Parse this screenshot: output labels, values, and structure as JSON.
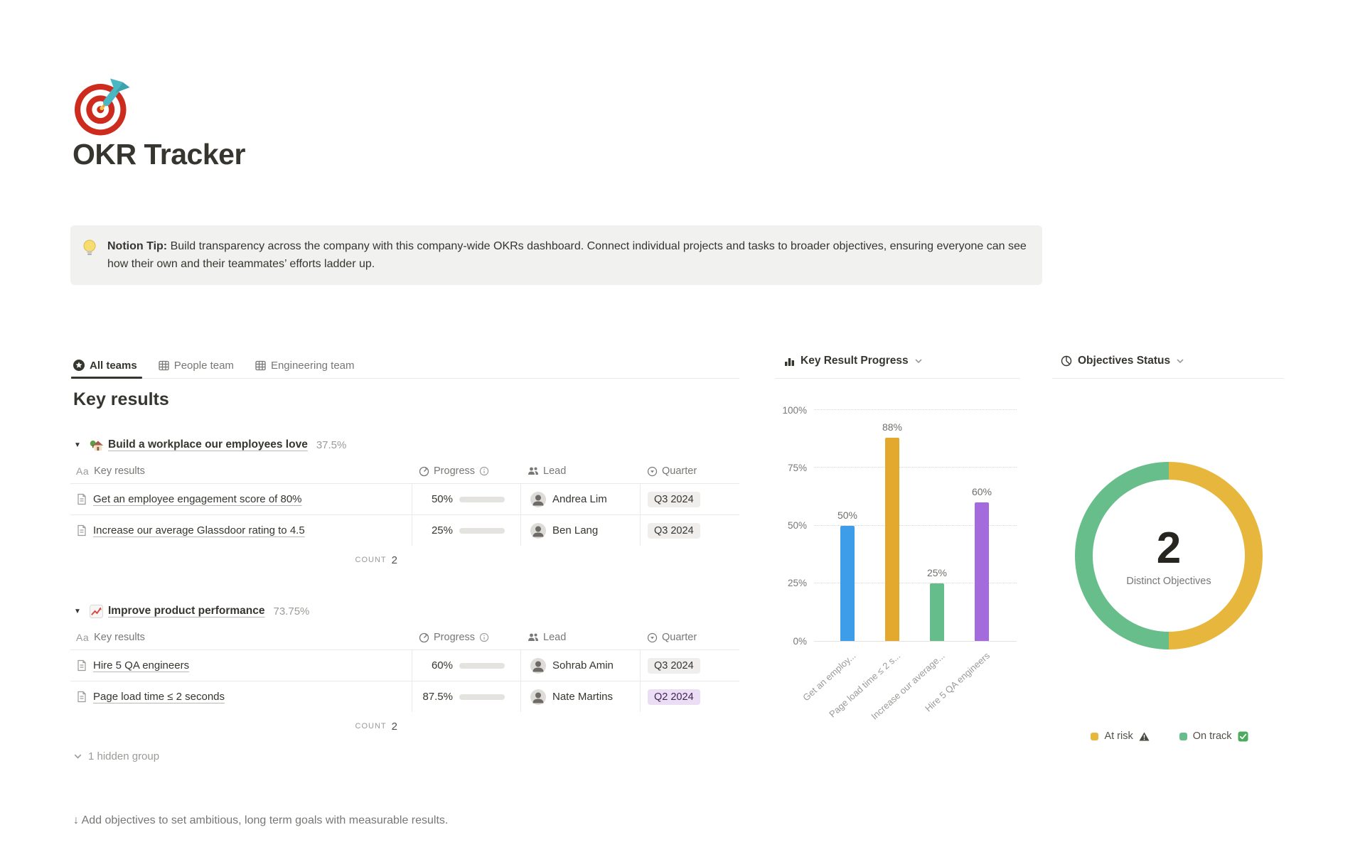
{
  "page": {
    "icon_name": "target-dart-icon",
    "title": "OKR Tracker",
    "tip": {
      "icon_name": "lightbulb-icon",
      "label": "Notion Tip:",
      "text": " Build transparency across the company with this company-wide OKRs dashboard. Connect individual projects and tasks to broader objectives, ensuring everyone can see how their own and their teammates’ efforts ladder up."
    }
  },
  "tabs": [
    {
      "label": "All teams",
      "icon": "star-badge-icon",
      "active": true
    },
    {
      "label": "People team",
      "icon": "table-view-icon",
      "active": false
    },
    {
      "label": "Engineering team",
      "icon": "table-view-icon",
      "active": false
    }
  ],
  "key_results": {
    "heading": "Key results",
    "columns": {
      "name": "Key results",
      "progress": "Progress",
      "lead": "Lead",
      "quarter": "Quarter"
    },
    "groups": [
      {
        "emoji_name": "house-garden-icon",
        "title": "Build a workplace our employees love",
        "percent": "37.5%",
        "rows": [
          {
            "name": "Get an employee engagement score of 80%",
            "progress_label": "50%",
            "progress_value": 50,
            "lead": "Andrea Lim",
            "quarter": "Q3 2024",
            "quarter_color": "gray"
          },
          {
            "name": "Increase our average Glassdoor rating to 4.5",
            "progress_label": "25%",
            "progress_value": 25,
            "lead": "Ben Lang",
            "quarter": "Q3 2024",
            "quarter_color": "gray"
          }
        ],
        "count_label": "COUNT",
        "count": "2"
      },
      {
        "emoji_name": "chart-increasing-icon",
        "title": "Improve product performance",
        "percent": "73.75%",
        "rows": [
          {
            "name": "Hire 5 QA engineers",
            "progress_label": "60%",
            "progress_value": 60,
            "lead": "Sohrab Amin",
            "quarter": "Q3 2024",
            "quarter_color": "gray"
          },
          {
            "name": "Page load time ≤ 2 seconds",
            "progress_label": "87.5%",
            "progress_value": 87.5,
            "lead": "Nate Martins",
            "quarter": "Q2 2024",
            "quarter_color": "purple"
          }
        ],
        "count_label": "COUNT",
        "count": "2"
      }
    ],
    "hidden_group_label": "1 hidden group",
    "footer_hint": "↓ Add objectives to set ambitious, long term goals with measurable results."
  },
  "chart_data": [
    {
      "type": "bar",
      "title": "Key Result Progress",
      "categories": [
        "Get an employ...",
        "Page load time ≤ 2 s...",
        "Increase our average...",
        "Hire 5 QA engineers"
      ],
      "values": [
        50,
        88,
        25,
        60
      ],
      "value_labels": [
        "50%",
        "88%",
        "25%",
        "60%"
      ],
      "colors": [
        "#3E9DE9",
        "#E3A92E",
        "#64BD8B",
        "#A36BDB"
      ],
      "ylabel_ticks": [
        "100%",
        "75%",
        "50%",
        "25%",
        "0%"
      ],
      "ylim": [
        0,
        100
      ],
      "grid": "dotted horizontal",
      "legend_position": "none"
    },
    {
      "type": "pie",
      "title": "Objectives Status",
      "center_value": "2",
      "center_label": "Distinct Objectives",
      "slices": [
        {
          "label": "At risk",
          "value": 1,
          "color": "#E7B63C",
          "status_icon": "warning-icon"
        },
        {
          "label": "On track",
          "value": 1,
          "color": "#67BE8B",
          "status_icon": "check-icon"
        }
      ],
      "legend_position": "bottom"
    }
  ]
}
